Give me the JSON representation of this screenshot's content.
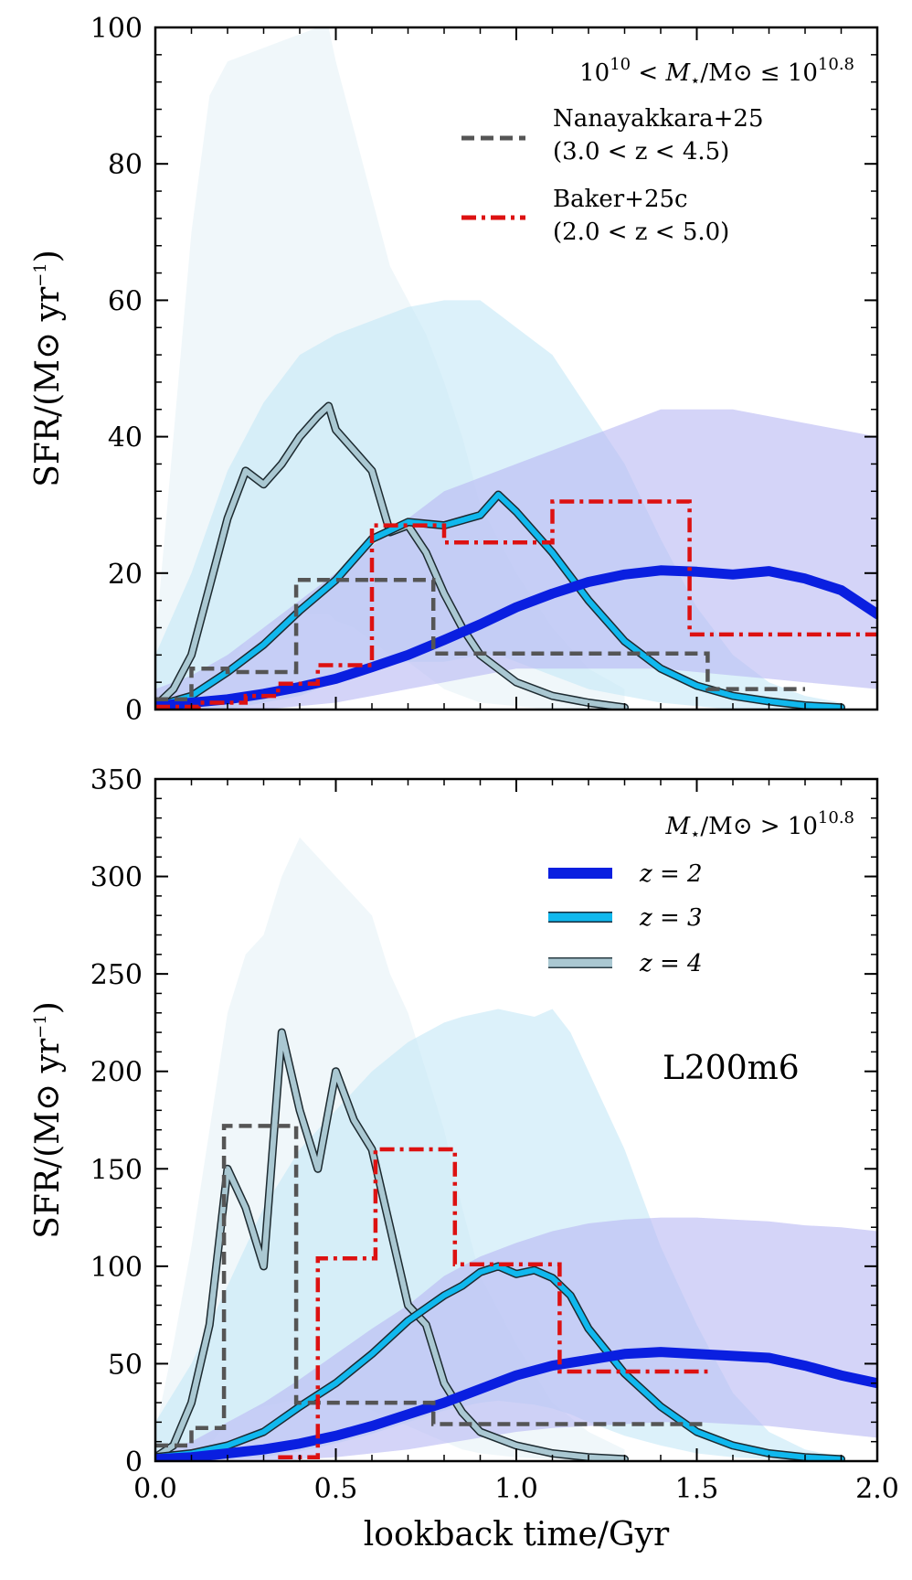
{
  "chart_data": [
    {
      "type": "line",
      "panel": "top",
      "xlabel": "lookback time/Gyr",
      "ylabel": "SFR/(M⊙ yr⁻¹)",
      "xlim": [
        0,
        2.0
      ],
      "ylim": [
        0,
        100
      ],
      "xticks": [
        "0.0",
        "0.5",
        "1.0",
        "1.5",
        "2.0"
      ],
      "yticks": [
        "0",
        "20",
        "40",
        "60",
        "80",
        "100"
      ],
      "mass_bin": "10^10 < M⋆/M⊙ ≤ 10^10.8",
      "legend": [
        {
          "name": "Nanayakkara+25",
          "range": "(3.0 < z < 4.5)",
          "style": "dashed",
          "color": "#555555"
        },
        {
          "name": "Baker+25c",
          "range": "(2.0 < z < 5.0)",
          "style": "dashdot",
          "color": "#dd1111"
        }
      ],
      "series": [
        {
          "name": "z=2",
          "color": "#0a1fe0",
          "band_color": "#b7b8f4",
          "x": [
            0,
            0.1,
            0.2,
            0.3,
            0.4,
            0.5,
            0.6,
            0.7,
            0.8,
            0.9,
            1.0,
            1.1,
            1.2,
            1.3,
            1.4,
            1.5,
            1.6,
            1.7,
            1.8,
            1.9,
            2.0
          ],
          "y": [
            0.5,
            1.0,
            1.5,
            2.3,
            3.3,
            4.5,
            6.2,
            8.0,
            10.2,
            12.5,
            15.0,
            17.0,
            18.7,
            19.8,
            20.4,
            20.2,
            19.8,
            20.3,
            19.2,
            17.5,
            14.0
          ],
          "band_lo": [
            0,
            0,
            0,
            0,
            0.5,
            1,
            2,
            3,
            4,
            5,
            6,
            6,
            6,
            6,
            6,
            5.5,
            5,
            4.5,
            4,
            3.5,
            3
          ],
          "band_hi": [
            3,
            5,
            8,
            12,
            16,
            20,
            24,
            28,
            32,
            34,
            36,
            38,
            40,
            42,
            44,
            44,
            44,
            43,
            42,
            41,
            40
          ]
        },
        {
          "name": "z=3",
          "color": "#10b8ee",
          "band_color": "#c4e8f7",
          "x": [
            0,
            0.1,
            0.2,
            0.3,
            0.4,
            0.5,
            0.6,
            0.7,
            0.8,
            0.9,
            0.95,
            1.0,
            1.1,
            1.2,
            1.3,
            1.4,
            1.5,
            1.6,
            1.7,
            1.8,
            1.9
          ],
          "y": [
            0.5,
            2.0,
            5.5,
            9.5,
            14.5,
            19.0,
            25.0,
            27.5,
            27.0,
            28.5,
            31.5,
            29.0,
            23.0,
            16.0,
            10.0,
            6.0,
            3.5,
            2.0,
            1.2,
            0.6,
            0.3
          ],
          "band_lo": [
            0,
            0,
            0,
            1,
            2,
            4,
            6,
            7,
            7,
            8,
            8,
            7,
            5,
            3,
            2,
            1,
            0.5,
            0,
            0,
            0,
            0
          ],
          "band_hi": [
            8,
            20,
            35,
            45,
            52,
            55,
            57,
            59,
            60,
            60,
            58,
            56,
            52,
            44,
            36,
            25,
            15,
            8,
            4,
            2,
            1
          ]
        },
        {
          "name": "z=4",
          "color": "#aac8d2",
          "band_color": "#e6f1f7",
          "x": [
            0,
            0.05,
            0.1,
            0.15,
            0.2,
            0.25,
            0.3,
            0.35,
            0.4,
            0.45,
            0.48,
            0.5,
            0.55,
            0.6,
            0.65,
            0.7,
            0.75,
            0.8,
            0.85,
            0.9,
            1.0,
            1.1,
            1.2,
            1.3
          ],
          "y": [
            0.5,
            3.0,
            8.0,
            18.0,
            28.0,
            35.0,
            33.0,
            36.0,
            40.0,
            43.0,
            44.5,
            41.0,
            38.0,
            35.0,
            26.0,
            27.0,
            23.0,
            17.0,
            12.0,
            8.0,
            4.0,
            2.0,
            1.0,
            0.3
          ],
          "band_lo": [
            0,
            0,
            1,
            3,
            6,
            10,
            12,
            13,
            14,
            14,
            14,
            13,
            12,
            10,
            8,
            7,
            5,
            3,
            2,
            1,
            0.5,
            0,
            0,
            0
          ],
          "band_hi": [
            10,
            40,
            70,
            90,
            95,
            96,
            97,
            98,
            99,
            100,
            100,
            95,
            85,
            75,
            65,
            60,
            55,
            48,
            40,
            30,
            20,
            12,
            6,
            3
          ]
        }
      ],
      "step_series": [
        {
          "name": "Nanayakkara+25",
          "style": "dashed",
          "color": "#555555",
          "edges": [
            0,
            0.1,
            0.2,
            0.39,
            0.77,
            1.53,
            1.8
          ],
          "values": [
            1.5,
            6.0,
            5.5,
            19.0,
            8.2,
            3.0
          ]
        },
        {
          "name": "Baker+25c",
          "style": "dashdot",
          "color": "#dd1111",
          "edges": [
            0,
            0.12,
            0.25,
            0.34,
            0.45,
            0.6,
            0.8,
            1.1,
            1.48,
            2.0
          ],
          "values": [
            0.4,
            1.0,
            2.0,
            3.8,
            6.5,
            27.0,
            24.5,
            30.5,
            11.0
          ]
        }
      ]
    },
    {
      "type": "line",
      "panel": "bottom",
      "xlabel": "lookback time/Gyr",
      "ylabel": "SFR/(M⊙ yr⁻¹)",
      "xlim": [
        0,
        2.0
      ],
      "ylim": [
        0,
        350
      ],
      "xticks": [
        "0.0",
        "0.5",
        "1.0",
        "1.5",
        "2.0"
      ],
      "yticks": [
        "0",
        "50",
        "100",
        "150",
        "200",
        "250",
        "300",
        "350"
      ],
      "mass_bin": "M⋆/M⊙ > 10^10.8",
      "annotation": "L200m6",
      "legend": [
        {
          "name": "z = 2",
          "color": "#0a1fe0"
        },
        {
          "name": "z = 3",
          "color": "#10b8ee"
        },
        {
          "name": "z = 4",
          "color": "#aac8d2"
        }
      ],
      "series": [
        {
          "name": "z=2",
          "color": "#0a1fe0",
          "band_color": "#b7b8f4",
          "x": [
            0,
            0.1,
            0.2,
            0.3,
            0.4,
            0.5,
            0.6,
            0.7,
            0.8,
            0.9,
            1.0,
            1.1,
            1.2,
            1.3,
            1.4,
            1.5,
            1.6,
            1.7,
            1.8,
            1.9,
            2.0
          ],
          "y": [
            1,
            2,
            4,
            6,
            9,
            13,
            18,
            24,
            30,
            37,
            44,
            49,
            52,
            55,
            56,
            55,
            54,
            53,
            49,
            44,
            40
          ],
          "band_lo": [
            0,
            0,
            0,
            0,
            1,
            2,
            4,
            6,
            9,
            12,
            15,
            17,
            18,
            19,
            20,
            20,
            19,
            18,
            16,
            14,
            12
          ],
          "band_hi": [
            5,
            10,
            20,
            30,
            42,
            55,
            68,
            80,
            95,
            105,
            112,
            118,
            122,
            124,
            125,
            125,
            124,
            123,
            121,
            120,
            118
          ]
        },
        {
          "name": "z=3",
          "color": "#10b8ee",
          "band_color": "#c4e8f7",
          "x": [
            0,
            0.1,
            0.2,
            0.3,
            0.4,
            0.5,
            0.6,
            0.7,
            0.8,
            0.85,
            0.9,
            0.95,
            1.0,
            1.05,
            1.1,
            1.15,
            1.2,
            1.3,
            1.4,
            1.5,
            1.6,
            1.7,
            1.8,
            1.9
          ],
          "y": [
            2,
            4,
            8,
            15,
            28,
            40,
            55,
            72,
            85,
            90,
            97,
            100,
            96,
            98,
            94,
            85,
            68,
            45,
            28,
            15,
            8,
            4,
            2,
            1
          ],
          "band_lo": [
            0,
            0,
            1,
            2,
            5,
            9,
            14,
            20,
            26,
            28,
            30,
            31,
            30,
            29,
            27,
            24,
            20,
            13,
            8,
            4,
            2,
            1,
            0,
            0
          ],
          "band_hi": [
            20,
            50,
            90,
            130,
            160,
            180,
            200,
            215,
            225,
            228,
            230,
            232,
            230,
            228,
            232,
            220,
            200,
            160,
            110,
            70,
            35,
            15,
            6,
            2
          ]
        },
        {
          "name": "z=4",
          "color": "#aac8d2",
          "band_color": "#e6f1f7",
          "x": [
            0,
            0.05,
            0.1,
            0.15,
            0.2,
            0.25,
            0.3,
            0.35,
            0.4,
            0.45,
            0.5,
            0.55,
            0.6,
            0.65,
            0.7,
            0.75,
            0.8,
            0.85,
            0.9,
            1.0,
            1.1,
            1.2,
            1.3
          ],
          "y": [
            2,
            8,
            30,
            70,
            150,
            130,
            100,
            220,
            180,
            150,
            200,
            175,
            160,
            120,
            80,
            70,
            40,
            25,
            15,
            8,
            4,
            2,
            1
          ],
          "band_lo": [
            0,
            0,
            2,
            8,
            20,
            25,
            28,
            30,
            32,
            33,
            32,
            30,
            26,
            22,
            18,
            14,
            10,
            6,
            4,
            2,
            1,
            0,
            0
          ],
          "band_hi": [
            15,
            60,
            110,
            170,
            230,
            260,
            270,
            300,
            320,
            310,
            300,
            290,
            280,
            250,
            230,
            200,
            170,
            130,
            95,
            60,
            30,
            15,
            6
          ]
        }
      ],
      "step_series": [
        {
          "name": "Nanayakkara+25",
          "style": "dashed",
          "color": "#555555",
          "edges": [
            0,
            0.1,
            0.19,
            0.39,
            0.77,
            1.53
          ],
          "values": [
            8,
            17,
            172,
            30,
            19
          ]
        },
        {
          "name": "Baker+25c",
          "style": "dashdot",
          "color": "#dd1111",
          "edges": [
            0.34,
            0.45,
            0.61,
            0.83,
            1.12,
            1.53
          ],
          "values": [
            2,
            104,
            160,
            101,
            46
          ]
        }
      ]
    }
  ],
  "ui": {
    "top": {
      "mass_prefix": "10",
      "mass_exp1": "10",
      "mass_mid": " < ",
      "mass_var": "M",
      "mass_star": "⋆",
      "mass_unit": "/M⊙ ≤ 10",
      "mass_exp2": "10.8"
    },
    "bottom": {
      "mass_var": "M",
      "mass_star": "⋆",
      "mass_unit": "/M⊙ > 10",
      "mass_exp": "10.8"
    },
    "ylabel_text": "SFR/(M⊙ yr",
    "ylabel_exp": "−1",
    "ylabel_close": ")"
  }
}
